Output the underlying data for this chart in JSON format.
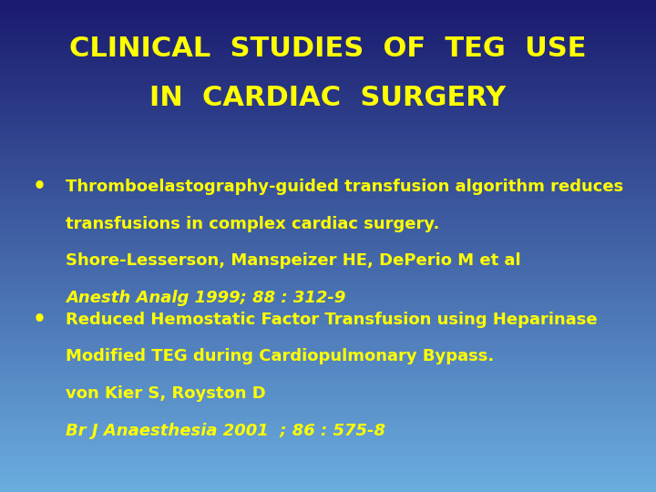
{
  "title_line1": "CLINICAL  STUDIES  OF  TEG  USE",
  "title_line2": "IN  CARDIAC  SURGERY",
  "title_color": "#FFFF00",
  "title_fontsize": 22,
  "bullet_color": "#FFFF00",
  "bullet1_line1": "Thromboelastography-guided transfusion algorithm reduces",
  "bullet1_line2": "transfusions in complex cardiac surgery.",
  "bullet1_line3": "Shore-Lesserson, Manspeizer HE, DePerio M et al",
  "bullet1_line4": "Anesth Analg 1999; 88 : 312-9",
  "bullet2_line1": "Reduced Hemostatic Factor Transfusion using Heparinase",
  "bullet2_line2": "Modified TEG during Cardiopulmonary Bypass.",
  "bullet2_line3": "von Kier S, Royston D",
  "bullet2_line4": "Br J Anaesthesia 2001  ; 86 : 575-8",
  "body_fontsize": 13,
  "italic_fontsize": 13,
  "bg_color_top": "#1a1a6e",
  "bg_color_bottom": "#6aaddf",
  "figsize": [
    7.2,
    5.4
  ],
  "dpi": 100
}
